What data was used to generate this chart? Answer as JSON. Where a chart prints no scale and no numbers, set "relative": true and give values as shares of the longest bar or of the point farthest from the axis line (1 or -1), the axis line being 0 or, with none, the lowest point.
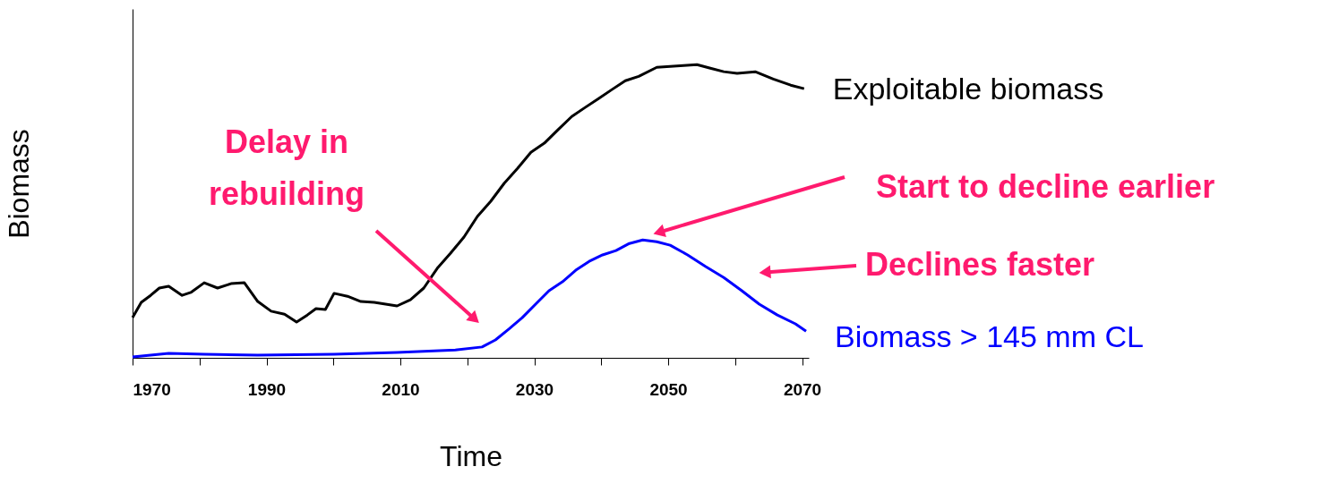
{
  "chart_data": {
    "type": "line",
    "relative": true,
    "xlabel": "Time",
    "ylabel": "Biomass",
    "xlim": [
      1970,
      2071
    ],
    "xticks": [
      1970,
      {
        "value": 1980,
        "label": null
      },
      1990,
      {
        "value": 2000,
        "label": null
      },
      2010,
      {
        "value": 2020,
        "label": null
      },
      2030,
      {
        "value": 2040,
        "label": null
      },
      2050,
      {
        "value": 2060,
        "label": null
      },
      2070
    ],
    "grid": false,
    "marker": "none",
    "line_style": "solid",
    "series": [
      {
        "name": "Exploitable biomass",
        "color": "#000000",
        "x": [
          1970,
          1971.3,
          1972.7,
          1974,
          1975.4,
          1977.4,
          1978.7,
          1980.7,
          1982.7,
          1984.7,
          1986.7,
          1988.7,
          1990.7,
          1992.7,
          1994.5,
          1996.1,
          1997.4,
          1998.8,
          2000.1,
          2002.1,
          2004.1,
          2006.1,
          2009.5,
          2011.5,
          2013.5,
          2015.5,
          2017.5,
          2019.5,
          2021.5,
          2023.5,
          2025.5,
          2027.5,
          2029.5,
          2031.5,
          2033.5,
          2035.6,
          2037.6,
          2039.6,
          2041.6,
          2043.6,
          2045.6,
          2048.3,
          2050.3,
          2052.3,
          2054.3,
          2056.3,
          2058.3,
          2060.3,
          2063,
          2065.7,
          2068.3,
          2070.3
        ],
        "values": [
          0.137,
          0.189,
          0.213,
          0.238,
          0.244,
          0.213,
          0.223,
          0.256,
          0.238,
          0.253,
          0.256,
          0.192,
          0.159,
          0.149,
          0.122,
          0.146,
          0.168,
          0.165,
          0.22,
          0.21,
          0.192,
          0.189,
          0.177,
          0.198,
          0.238,
          0.305,
          0.357,
          0.412,
          0.482,
          0.534,
          0.595,
          0.646,
          0.701,
          0.732,
          0.777,
          0.823,
          0.854,
          0.884,
          0.915,
          0.945,
          0.96,
          0.991,
          0.994,
          0.997,
          1.0,
          0.988,
          0.976,
          0.97,
          0.976,
          0.951,
          0.93,
          0.918
        ]
      },
      {
        "name": "Biomass > 145 mm CL",
        "color": "#0000ff",
        "x": [
          1970,
          1975.4,
          1980.7,
          1988.7,
          2000.1,
          2009.5,
          2018.2,
          2022.2,
          2024.2,
          2026.2,
          2028.2,
          2030.2,
          2032.2,
          2034.2,
          2036.2,
          2038.2,
          2040.2,
          2042.2,
          2044.2,
          2046.2,
          2048.3,
          2050.3,
          2052.9,
          2055.6,
          2058.3,
          2061,
          2063.6,
          2066.3,
          2069,
          2070.6
        ],
        "values": [
          0.003,
          0.015,
          0.012,
          0.009,
          0.012,
          0.018,
          0.027,
          0.037,
          0.061,
          0.098,
          0.137,
          0.183,
          0.229,
          0.259,
          0.299,
          0.329,
          0.351,
          0.366,
          0.39,
          0.402,
          0.396,
          0.384,
          0.351,
          0.311,
          0.274,
          0.229,
          0.183,
          0.146,
          0.116,
          0.091
        ]
      }
    ],
    "annotations": [
      "Delay in\nrebuilding",
      "Start to decline earlier",
      "Declines faster"
    ]
  }
}
